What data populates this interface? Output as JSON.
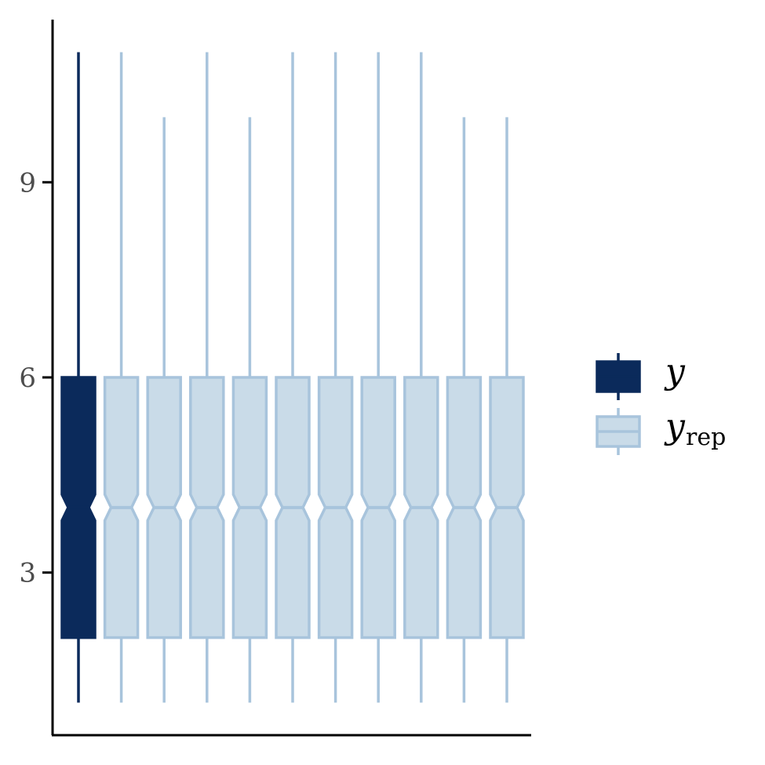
{
  "chart_data": {
    "type": "box",
    "title": "",
    "xlabel": "",
    "ylabel": "",
    "ylim": [
      0.5,
      11.5
    ],
    "yticks": [
      3,
      6,
      9
    ],
    "y_tick_labels": [
      "3",
      "6",
      "9"
    ],
    "notched": true,
    "grid": false,
    "legend_position": "right",
    "legend": [
      {
        "key": "y",
        "label": "y",
        "subscript": "",
        "color": "#0b2a5b",
        "fill": "#0b2a5b"
      },
      {
        "key": "yrep",
        "label": "y",
        "subscript": "rep",
        "color": "#a8c4dc",
        "fill": "#c9dbe8"
      }
    ],
    "series": [
      {
        "group": "y",
        "min": 1,
        "q1": 2,
        "median": 4,
        "q3": 6,
        "max": 11
      },
      {
        "group": "yrep",
        "min": 1,
        "q1": 2,
        "median": 4,
        "q3": 6,
        "max": 11
      },
      {
        "group": "yrep",
        "min": 1,
        "q1": 2,
        "median": 4,
        "q3": 6,
        "max": 10
      },
      {
        "group": "yrep",
        "min": 1,
        "q1": 2,
        "median": 4,
        "q3": 6,
        "max": 11
      },
      {
        "group": "yrep",
        "min": 1,
        "q1": 2,
        "median": 4,
        "q3": 6,
        "max": 10
      },
      {
        "group": "yrep",
        "min": 1,
        "q1": 2,
        "median": 4,
        "q3": 6,
        "max": 11
      },
      {
        "group": "yrep",
        "min": 1,
        "q1": 2,
        "median": 4,
        "q3": 6,
        "max": 11
      },
      {
        "group": "yrep",
        "min": 1,
        "q1": 2,
        "median": 4,
        "q3": 6,
        "max": 11
      },
      {
        "group": "yrep",
        "min": 1,
        "q1": 2,
        "median": 4,
        "q3": 6,
        "max": 11
      },
      {
        "group": "yrep",
        "min": 1,
        "q1": 2,
        "median": 4,
        "q3": 6,
        "max": 10
      },
      {
        "group": "yrep",
        "min": 1,
        "q1": 2,
        "median": 4,
        "q3": 6,
        "max": 10
      }
    ]
  }
}
